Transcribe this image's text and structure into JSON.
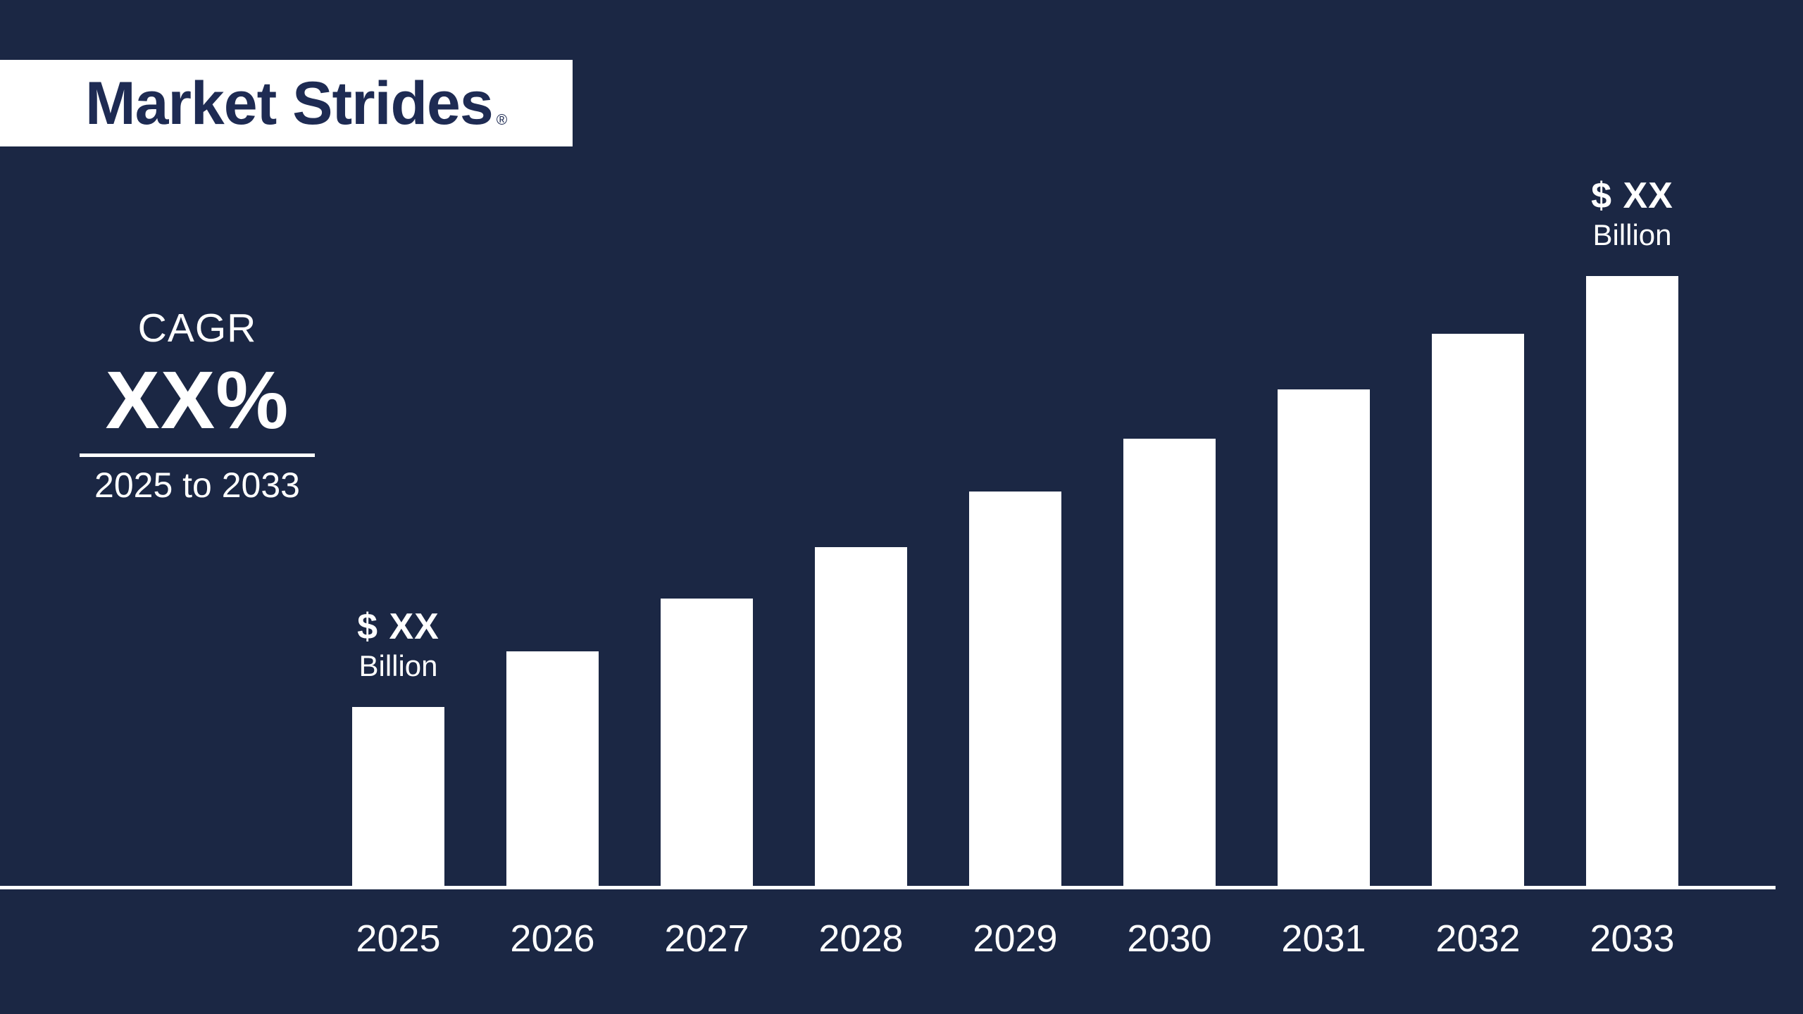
{
  "page": {
    "background_color": "#1b2744"
  },
  "logo": {
    "brand": "Market Strides",
    "registered_mark": "®",
    "banner_color": "#ffffff",
    "text_color": "#1e2b53"
  },
  "cagr": {
    "label": "CAGR",
    "value": "XX%",
    "period": "2025 to 2033"
  },
  "chart_data": {
    "type": "bar",
    "title": "",
    "xlabel": "",
    "ylabel": "",
    "grid": false,
    "legend": false,
    "bar_color": "#ffffff",
    "axis_color": "#ffffff",
    "label_color": "#ffffff",
    "categories": [
      "2025",
      "2026",
      "2027",
      "2028",
      "2029",
      "2030",
      "2031",
      "2032",
      "2033"
    ],
    "values_masked": true,
    "relative_heights_pct": [
      29.3,
      38.5,
      47.1,
      55.5,
      64.7,
      73.3,
      81.4,
      90.5,
      100
    ],
    "annotations": [
      {
        "category_index": 0,
        "line1": "$ XX",
        "line2": "Billion"
      },
      {
        "category_index": 8,
        "line1": "$ XX",
        "line2": "Billion"
      }
    ]
  }
}
